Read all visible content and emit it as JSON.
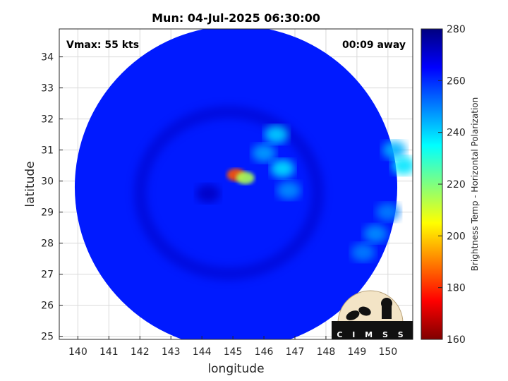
{
  "chart_data": {
    "type": "heatmap",
    "title": "Mun: 04-Jul-2025 06:30:00",
    "xlabel": "longitude",
    "ylabel": "latitude",
    "xlim": [
      139.4,
      150.8
    ],
    "ylim": [
      24.9,
      34.9
    ],
    "xticks": [
      140,
      141,
      142,
      143,
      144,
      145,
      146,
      147,
      148,
      149,
      150
    ],
    "yticks": [
      25,
      26,
      27,
      28,
      29,
      30,
      31,
      32,
      33,
      34
    ],
    "grid": true,
    "annotations": {
      "left": "Vmax: 55 kts",
      "right": "00:09 away"
    },
    "colorbar": {
      "label": "Brightness Temp - Horizontal Polarization",
      "range": [
        160,
        280
      ],
      "ticks": [
        160,
        180,
        200,
        220,
        240,
        260,
        280
      ],
      "colormap": "jet"
    },
    "swath": {
      "center_lon": 145.1,
      "center_lat": 29.8,
      "radius_deg": 5.2
    },
    "background_value": 262,
    "features": [
      {
        "lon": 145.1,
        "lat": 30.2,
        "value": 185
      },
      {
        "lon": 145.4,
        "lat": 30.1,
        "value": 215
      },
      {
        "lon": 146.4,
        "lat": 31.5,
        "value": 240
      },
      {
        "lon": 146.6,
        "lat": 30.4,
        "value": 238
      },
      {
        "lon": 146.0,
        "lat": 30.9,
        "value": 246
      },
      {
        "lon": 146.8,
        "lat": 29.7,
        "value": 248
      },
      {
        "lon": 150.2,
        "lat": 31.0,
        "value": 244
      },
      {
        "lon": 150.5,
        "lat": 30.5,
        "value": 238
      },
      {
        "lon": 149.6,
        "lat": 28.3,
        "value": 248
      },
      {
        "lon": 149.2,
        "lat": 27.7,
        "value": 250
      },
      {
        "lon": 150.0,
        "lat": 29.0,
        "value": 250
      },
      {
        "lon": 144.2,
        "lat": 29.6,
        "value": 272
      }
    ]
  },
  "logo": {
    "text": "CIMSS",
    "text_spaced": "C I M S S"
  },
  "colors": {
    "axis": "#262626",
    "grid": "#d9d9d9"
  }
}
